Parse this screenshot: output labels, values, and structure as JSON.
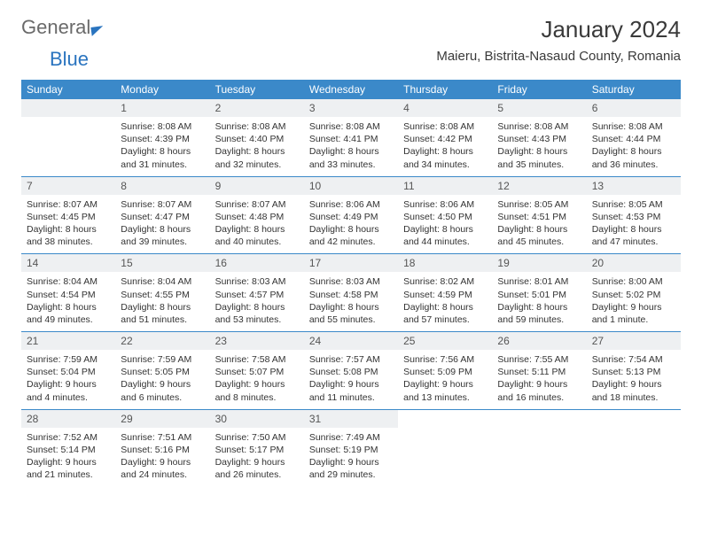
{
  "logo": {
    "part1": "General",
    "part2": "Blue"
  },
  "title": "January 2024",
  "location": "Maieru, Bistrita-Nasaud County, Romania",
  "header_bg": "#3b89c9",
  "header_text_color": "#ffffff",
  "daynum_bg": "#eef0f2",
  "border_color": "#3b89c9",
  "text_color": "#333333",
  "days_of_week": [
    "Sunday",
    "Monday",
    "Tuesday",
    "Wednesday",
    "Thursday",
    "Friday",
    "Saturday"
  ],
  "first_weekday_index": 1,
  "days": [
    {
      "n": 1,
      "sr": "8:08 AM",
      "ss": "4:39 PM",
      "dl": "8 hours and 31 minutes."
    },
    {
      "n": 2,
      "sr": "8:08 AM",
      "ss": "4:40 PM",
      "dl": "8 hours and 32 minutes."
    },
    {
      "n": 3,
      "sr": "8:08 AM",
      "ss": "4:41 PM",
      "dl": "8 hours and 33 minutes."
    },
    {
      "n": 4,
      "sr": "8:08 AM",
      "ss": "4:42 PM",
      "dl": "8 hours and 34 minutes."
    },
    {
      "n": 5,
      "sr": "8:08 AM",
      "ss": "4:43 PM",
      "dl": "8 hours and 35 minutes."
    },
    {
      "n": 6,
      "sr": "8:08 AM",
      "ss": "4:44 PM",
      "dl": "8 hours and 36 minutes."
    },
    {
      "n": 7,
      "sr": "8:07 AM",
      "ss": "4:45 PM",
      "dl": "8 hours and 38 minutes."
    },
    {
      "n": 8,
      "sr": "8:07 AM",
      "ss": "4:47 PM",
      "dl": "8 hours and 39 minutes."
    },
    {
      "n": 9,
      "sr": "8:07 AM",
      "ss": "4:48 PM",
      "dl": "8 hours and 40 minutes."
    },
    {
      "n": 10,
      "sr": "8:06 AM",
      "ss": "4:49 PM",
      "dl": "8 hours and 42 minutes."
    },
    {
      "n": 11,
      "sr": "8:06 AM",
      "ss": "4:50 PM",
      "dl": "8 hours and 44 minutes."
    },
    {
      "n": 12,
      "sr": "8:05 AM",
      "ss": "4:51 PM",
      "dl": "8 hours and 45 minutes."
    },
    {
      "n": 13,
      "sr": "8:05 AM",
      "ss": "4:53 PM",
      "dl": "8 hours and 47 minutes."
    },
    {
      "n": 14,
      "sr": "8:04 AM",
      "ss": "4:54 PM",
      "dl": "8 hours and 49 minutes."
    },
    {
      "n": 15,
      "sr": "8:04 AM",
      "ss": "4:55 PM",
      "dl": "8 hours and 51 minutes."
    },
    {
      "n": 16,
      "sr": "8:03 AM",
      "ss": "4:57 PM",
      "dl": "8 hours and 53 minutes."
    },
    {
      "n": 17,
      "sr": "8:03 AM",
      "ss": "4:58 PM",
      "dl": "8 hours and 55 minutes."
    },
    {
      "n": 18,
      "sr": "8:02 AM",
      "ss": "4:59 PM",
      "dl": "8 hours and 57 minutes."
    },
    {
      "n": 19,
      "sr": "8:01 AM",
      "ss": "5:01 PM",
      "dl": "8 hours and 59 minutes."
    },
    {
      "n": 20,
      "sr": "8:00 AM",
      "ss": "5:02 PM",
      "dl": "9 hours and 1 minute."
    },
    {
      "n": 21,
      "sr": "7:59 AM",
      "ss": "5:04 PM",
      "dl": "9 hours and 4 minutes."
    },
    {
      "n": 22,
      "sr": "7:59 AM",
      "ss": "5:05 PM",
      "dl": "9 hours and 6 minutes."
    },
    {
      "n": 23,
      "sr": "7:58 AM",
      "ss": "5:07 PM",
      "dl": "9 hours and 8 minutes."
    },
    {
      "n": 24,
      "sr": "7:57 AM",
      "ss": "5:08 PM",
      "dl": "9 hours and 11 minutes."
    },
    {
      "n": 25,
      "sr": "7:56 AM",
      "ss": "5:09 PM",
      "dl": "9 hours and 13 minutes."
    },
    {
      "n": 26,
      "sr": "7:55 AM",
      "ss": "5:11 PM",
      "dl": "9 hours and 16 minutes."
    },
    {
      "n": 27,
      "sr": "7:54 AM",
      "ss": "5:13 PM",
      "dl": "9 hours and 18 minutes."
    },
    {
      "n": 28,
      "sr": "7:52 AM",
      "ss": "5:14 PM",
      "dl": "9 hours and 21 minutes."
    },
    {
      "n": 29,
      "sr": "7:51 AM",
      "ss": "5:16 PM",
      "dl": "9 hours and 24 minutes."
    },
    {
      "n": 30,
      "sr": "7:50 AM",
      "ss": "5:17 PM",
      "dl": "9 hours and 26 minutes."
    },
    {
      "n": 31,
      "sr": "7:49 AM",
      "ss": "5:19 PM",
      "dl": "9 hours and 29 minutes."
    }
  ],
  "labels": {
    "sunrise": "Sunrise:",
    "sunset": "Sunset:",
    "daylight": "Daylight:"
  }
}
